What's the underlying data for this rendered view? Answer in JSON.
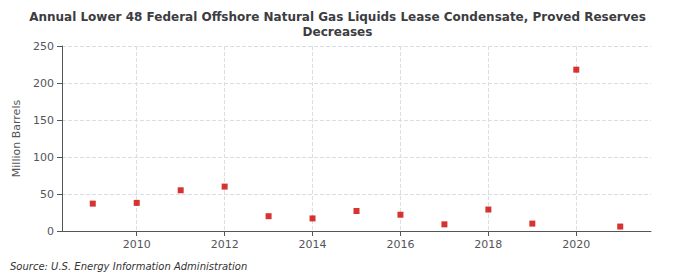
{
  "chart_data": {
    "type": "scatter",
    "title": "Annual Lower 48 Federal Offshore Natural Gas Liquids Lease Condensate, Proved Reserves\nDecreases",
    "ylabel": "Million Barrels",
    "source": "Source: U.S. Energy Information Administration",
    "x": [
      2009,
      2010,
      2011,
      2012,
      2013,
      2014,
      2015,
      2016,
      2017,
      2018,
      2019,
      2020,
      2021
    ],
    "values": [
      37,
      38,
      55,
      60,
      20,
      17,
      27,
      22,
      9,
      29,
      10,
      218,
      6
    ],
    "color": "#cc0000",
    "marker": "square",
    "xlim": [
      2008.3,
      2021.7
    ],
    "xticks": [
      2010,
      2012,
      2014,
      2016,
      2018,
      2020
    ],
    "ylim": [
      0,
      250
    ],
    "yticks": [
      0,
      50,
      100,
      150,
      200,
      250
    ],
    "grid": true
  }
}
